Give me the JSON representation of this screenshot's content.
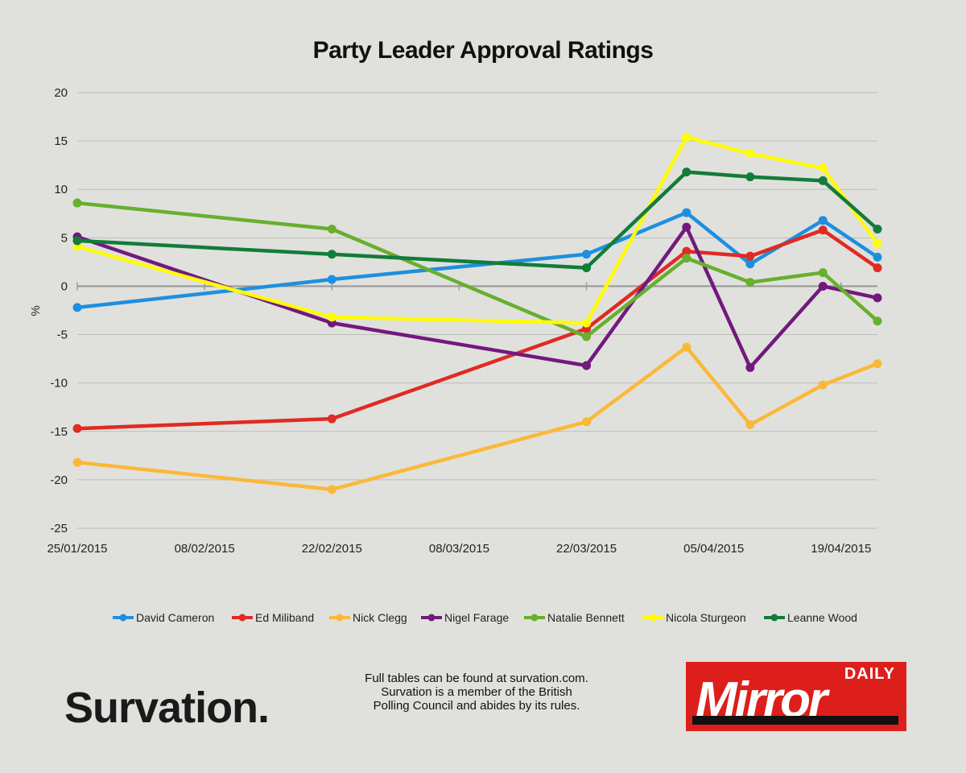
{
  "chart_data": {
    "type": "line",
    "title": "Party Leader Approval Ratings",
    "xlabel": "",
    "ylabel": "%",
    "ylim": [
      -25,
      20
    ],
    "yticks": [
      "20",
      "15",
      "10",
      "5",
      "0",
      "-5",
      "-10",
      "-15",
      "-20",
      "-25"
    ],
    "xtick_labels": [
      "25/01/2015",
      "08/02/2015",
      "22/02/2015",
      "08/03/2015",
      "22/03/2015",
      "05/04/2015",
      "19/04/2015"
    ],
    "xlim": [
      "2015-01-25",
      "2015-04-23"
    ],
    "grid": true,
    "legend_position": "bottom",
    "x": [
      "2015-01-25",
      "2015-02-22",
      "2015-03-22",
      "2015-04-02",
      "2015-04-09",
      "2015-04-17",
      "2015-04-23"
    ],
    "series": [
      {
        "name": "David Cameron",
        "color": "#1e8fe0",
        "values": [
          -2.2,
          0.7,
          3.3,
          7.6,
          2.3,
          6.8,
          3.0
        ]
      },
      {
        "name": "Ed Miliband",
        "color": "#e02a24",
        "values": [
          -14.7,
          -13.7,
          -4.4,
          3.6,
          3.1,
          5.8,
          1.9
        ]
      },
      {
        "name": "Nick Clegg",
        "color": "#fbb838",
        "values": [
          -18.2,
          -21.0,
          -14.0,
          -6.3,
          -14.3,
          -10.2,
          -8.0
        ]
      },
      {
        "name": "Nigel Farage",
        "color": "#72197e",
        "values": [
          5.1,
          -3.8,
          -8.2,
          6.1,
          -8.4,
          0.0,
          -1.2
        ]
      },
      {
        "name": "Natalie Bennett",
        "color": "#67af2f",
        "values": [
          8.6,
          5.9,
          -5.2,
          2.9,
          0.4,
          1.4,
          -3.6
        ]
      },
      {
        "name": "Nicola Sturgeon",
        "color": "#fffc07",
        "values": [
          4.1,
          -3.2,
          -3.8,
          15.4,
          13.7,
          12.2,
          4.4
        ]
      },
      {
        "name": "Leanne Wood",
        "color": "#127c3a",
        "values": [
          4.7,
          3.3,
          1.9,
          11.8,
          11.3,
          10.9,
          5.9
        ]
      }
    ]
  },
  "brand": "Survation.",
  "note": [
    "Full tables can be found at survation.com.",
    "Survation is a member of the British",
    "Polling Council and abides by its rules."
  ],
  "logo": {
    "top": "DAILY",
    "word": "Mirror"
  }
}
